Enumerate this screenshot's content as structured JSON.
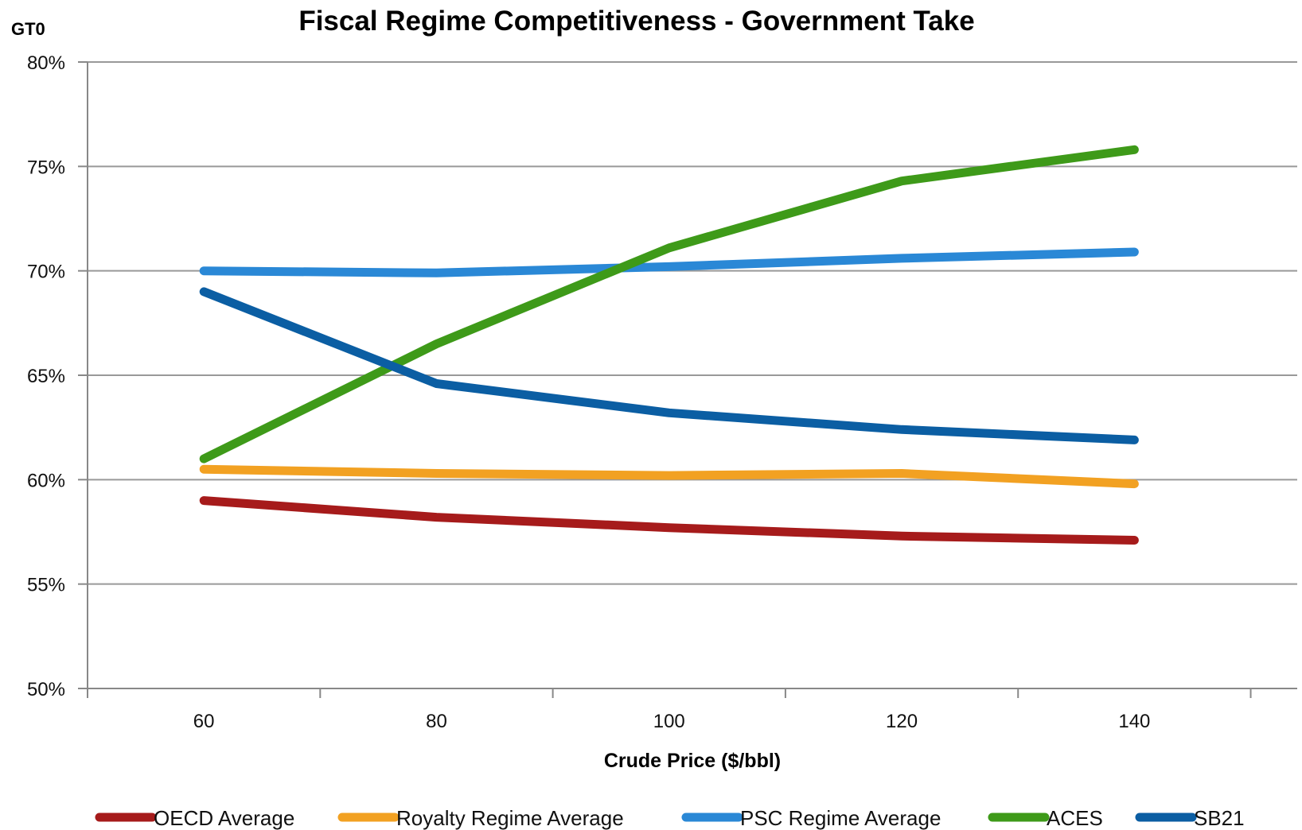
{
  "corner_label": "GT0",
  "chart_data": {
    "type": "line",
    "title": "Fiscal Regime Competitiveness - Government Take",
    "xlabel": "Crude Price ($/bbl)",
    "ylabel": "",
    "categories": [
      "60",
      "80",
      "100",
      "120",
      "140"
    ],
    "yticks": [
      "50%",
      "55%",
      "60%",
      "65%",
      "70%",
      "75%",
      "80%"
    ],
    "ylim": [
      50,
      80
    ],
    "grid": true,
    "legend_position": "bottom",
    "series": [
      {
        "name": "OECD Average",
        "color": "#a61b1b",
        "values": [
          59.0,
          58.2,
          57.7,
          57.3,
          57.1
        ]
      },
      {
        "name": "Royalty Regime Average",
        "color": "#f2a122",
        "values": [
          60.5,
          60.3,
          60.2,
          60.3,
          59.8
        ]
      },
      {
        "name": "PSC Regime Average",
        "color": "#2a88d6",
        "values": [
          70.0,
          69.9,
          70.2,
          70.6,
          70.9
        ]
      },
      {
        "name": "ACES",
        "color": "#3e9a19",
        "values": [
          61.0,
          66.5,
          71.1,
          74.3,
          75.8
        ]
      },
      {
        "name": "SB21",
        "color": "#0b5ea3",
        "values": [
          69.0,
          64.6,
          63.2,
          62.4,
          61.9
        ]
      }
    ]
  }
}
